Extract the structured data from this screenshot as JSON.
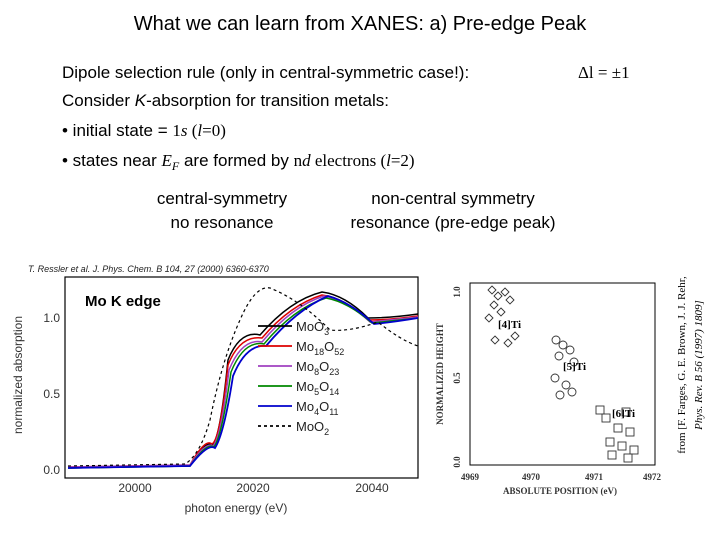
{
  "title": "What we can learn from XANES: a) Pre-edge Peak",
  "body": {
    "line1": "Dipole selection rule (only in central-symmetric case!):",
    "rule": "Δl = ±1",
    "line2": [
      "Consider ",
      "K",
      "-absorption for transition metals:"
    ],
    "line3": [
      "• initial state = ",
      "1",
      "s",
      " (",
      "l",
      "=0)"
    ],
    "line4": [
      "• states near ",
      "E",
      "F",
      " are formed by ",
      "n",
      "d",
      " electrons (",
      "l",
      "=2)"
    ]
  },
  "labels": {
    "central": [
      "central-symmetry",
      "no resonance"
    ],
    "noncentral": [
      "non-central symmetry",
      "resonance (pre-edge peak)"
    ]
  },
  "left_figure": {
    "citation": "T. Ressler et al. J. Phys. Chem. B 104, 27 (2000) 6360-6370",
    "inset": "Mo K edge",
    "y_label": "normalized absorption",
    "x_label": "photon energy (eV)",
    "yticks": [
      "0.0",
      "0.5",
      "1.0"
    ],
    "xticks": [
      "20000",
      "20020",
      "20040"
    ],
    "legend": [
      [
        "MoO",
        "3"
      ],
      [
        "Mo",
        "18",
        "O",
        "52"
      ],
      [
        "Mo",
        "8",
        "O",
        "23"
      ],
      [
        "Mo",
        "5",
        "O",
        "14"
      ],
      [
        "Mo",
        "4",
        "O",
        "11"
      ],
      [
        "MoO",
        "2"
      ]
    ]
  },
  "right_figure": {
    "y_label": "NORMALIZED HEIGHT",
    "x_label": "ABSOLUTE POSITION (eV)",
    "yticks": [
      "0.0",
      "0.5",
      "1.0"
    ],
    "xticks": [
      "4969",
      "4970",
      "4971",
      "4972"
    ],
    "sites": [
      "[4]Ti",
      "[5]Ti",
      "[6]Ti"
    ],
    "citation": [
      "from [F. Farges, G. E. Brown, J. J. Rehr,",
      "Phys. Rev. B 56 (1997) 1809]"
    ]
  }
}
